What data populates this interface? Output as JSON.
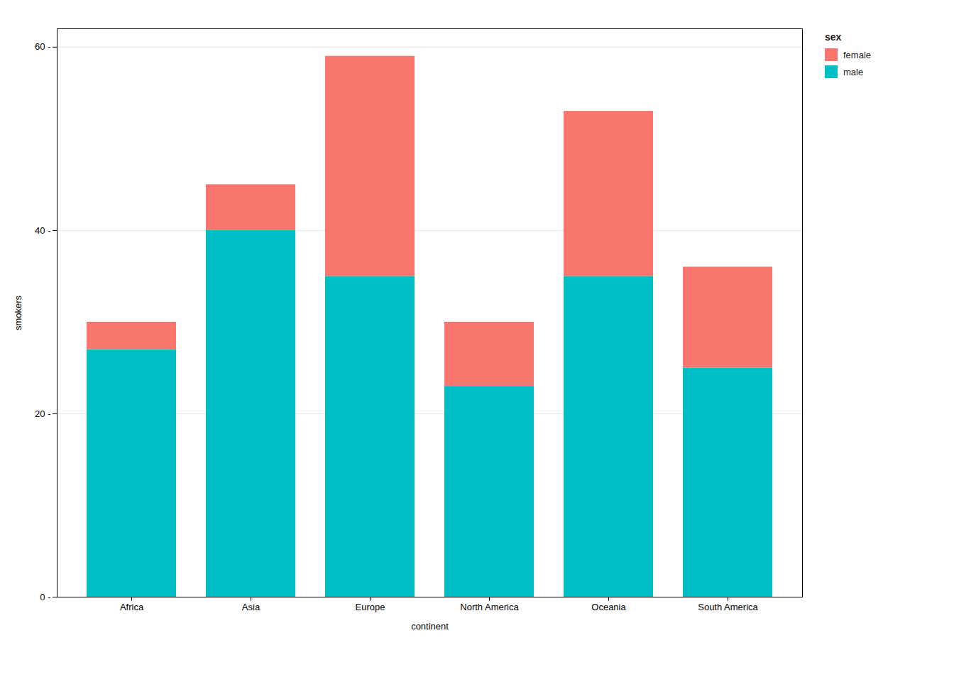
{
  "chart_data": {
    "type": "bar",
    "stacked": true,
    "grid": true,
    "legend": "right",
    "legend_title": "sex",
    "xlabel": "continent",
    "ylabel": "smokers",
    "categories": [
      "Africa",
      "Asia",
      "Europe",
      "North America",
      "Oceania",
      "South America"
    ],
    "series": [
      {
        "name": "male",
        "color": "#00BFC4",
        "values": [
          27,
          40,
          35,
          23,
          35,
          25
        ]
      },
      {
        "name": "female",
        "color": "#F8766D",
        "values": [
          3,
          5,
          24,
          7,
          18,
          11
        ]
      }
    ],
    "ylim": [
      0,
      62
    ],
    "yticks": [
      {
        "value": 0,
        "label": "0 -"
      },
      {
        "value": 20,
        "label": "20 -"
      },
      {
        "value": 40,
        "label": "40 -"
      },
      {
        "value": 60,
        "label": "60 -"
      }
    ]
  }
}
